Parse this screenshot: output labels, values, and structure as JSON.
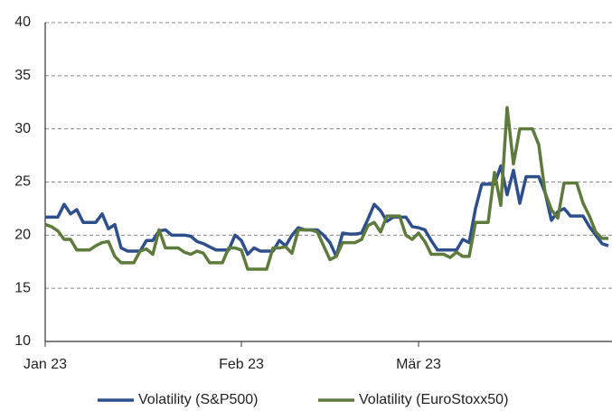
{
  "chart_data": {
    "type": "line",
    "categories": [
      "Jan 23",
      null,
      null,
      null,
      null,
      null,
      null,
      null,
      null,
      null,
      null,
      null,
      null,
      null,
      null,
      null,
      null,
      null,
      null,
      null,
      null,
      null,
      null,
      null,
      null,
      null,
      null,
      null,
      null,
      null,
      null,
      "Feb 23",
      null,
      null,
      null,
      null,
      null,
      null,
      null,
      null,
      null,
      null,
      null,
      null,
      null,
      null,
      null,
      null,
      null,
      null,
      null,
      null,
      null,
      null,
      null,
      null,
      null,
      null,
      null,
      "Mär 23",
      null,
      null,
      null,
      null,
      null,
      null,
      null,
      null,
      null,
      null,
      null,
      null,
      null,
      null,
      null,
      null,
      null,
      null,
      null,
      null,
      null,
      null,
      null,
      null,
      null,
      null,
      null,
      null,
      null,
      null
    ],
    "series": [
      {
        "name": "Volatility (S&P500)",
        "color": "#2e4f8c",
        "values": [
          21.7,
          21.7,
          21.7,
          22.9,
          22.0,
          22.4,
          21.2,
          21.2,
          21.2,
          22.0,
          20.6,
          21.0,
          18.8,
          18.5,
          18.5,
          18.5,
          19.5,
          19.5,
          20.4,
          20.5,
          20.0,
          20.0,
          20.0,
          19.9,
          19.4,
          19.2,
          18.9,
          18.6,
          18.6,
          18.6,
          20.0,
          19.5,
          18.2,
          18.8,
          18.5,
          18.5,
          18.5,
          19.5,
          19.0,
          20.0,
          20.7,
          20.5,
          20.5,
          20.5,
          20.0,
          19.3,
          18.0,
          20.2,
          20.1,
          20.1,
          20.2,
          21.5,
          22.9,
          22.3,
          21.3,
          21.7,
          21.7,
          21.7,
          20.8,
          20.7,
          20.5,
          19.5,
          18.6,
          18.6,
          18.6,
          18.6,
          19.6,
          19.3,
          22.5,
          24.8,
          24.8,
          24.8,
          26.5,
          23.8,
          26.1,
          23.0,
          25.5,
          25.5,
          25.5,
          24.0,
          21.4,
          22.2,
          22.5,
          21.8,
          21.8,
          21.8,
          20.8,
          20.0,
          19.2,
          19.0
        ]
      },
      {
        "name": "Volatility (EuroStoxx50)",
        "color": "#5e7a3c",
        "values": [
          21.0,
          20.8,
          20.4,
          19.6,
          19.6,
          18.6,
          18.6,
          18.6,
          19.0,
          19.3,
          19.4,
          18.0,
          17.4,
          17.4,
          17.4,
          18.5,
          18.7,
          18.2,
          20.5,
          18.8,
          18.8,
          18.8,
          18.4,
          18.2,
          18.5,
          18.3,
          17.4,
          17.4,
          17.4,
          18.8,
          18.8,
          18.6,
          16.8,
          16.8,
          16.8,
          16.8,
          18.8,
          18.8,
          18.9,
          18.3,
          20.5,
          20.5,
          20.5,
          20.3,
          19.0,
          17.7,
          18.0,
          19.3,
          19.3,
          19.3,
          19.6,
          20.9,
          21.2,
          20.3,
          21.8,
          21.8,
          21.8,
          20.0,
          19.6,
          20.2,
          19.4,
          18.2,
          18.2,
          18.2,
          17.9,
          18.4,
          18.0,
          18.0,
          21.2,
          21.2,
          21.2,
          25.9,
          22.8,
          32.0,
          26.7,
          30.0,
          30.0,
          30.0,
          28.5,
          24.0,
          22.4,
          21.6,
          24.9,
          24.9,
          24.9,
          23.0,
          21.8,
          20.3,
          19.7,
          19.7
        ]
      }
    ],
    "ylim": [
      10,
      40
    ],
    "yticks": [
      10,
      15,
      20,
      25,
      30,
      35,
      40
    ],
    "grid": true,
    "legend": "bottom"
  }
}
